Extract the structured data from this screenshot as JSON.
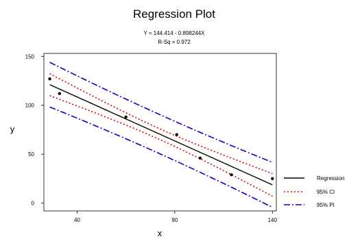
{
  "chart_data": {
    "type": "scatter",
    "title": "Regression Plot",
    "equation": "Y = 144.414 - 0.898244X",
    "rsq": "R-Sq = 0.972",
    "xlabel": "x",
    "ylabel": "y",
    "xlim": [
      23,
      142
    ],
    "ylim": [
      -8,
      153
    ],
    "x_ticks": [
      40,
      90,
      140
    ],
    "y_ticks": [
      0,
      50,
      100,
      150
    ],
    "grid": false,
    "legend_position": "right",
    "regression": {
      "intercept": 144.414,
      "slope": -0.898244
    },
    "ci_half_width": {
      "at_ends": 11.5,
      "at_center": 5.5
    },
    "pi_half_width": {
      "at_ends": 23,
      "at_center": 20
    },
    "points": [
      {
        "x": 26,
        "y": 127
      },
      {
        "x": 31,
        "y": 112
      },
      {
        "x": 65,
        "y": 88
      },
      {
        "x": 91,
        "y": 70
      },
      {
        "x": 103,
        "y": 46
      },
      {
        "x": 119,
        "y": 29
      },
      {
        "x": 140,
        "y": 25
      }
    ],
    "series": [
      {
        "name": "Regression",
        "style": "solid",
        "color": "#000000"
      },
      {
        "name": "95% CI",
        "style": "dotted",
        "color": "#d40000"
      },
      {
        "name": "95% PI",
        "style": "dash-dot",
        "color": "#0000d0"
      }
    ]
  }
}
